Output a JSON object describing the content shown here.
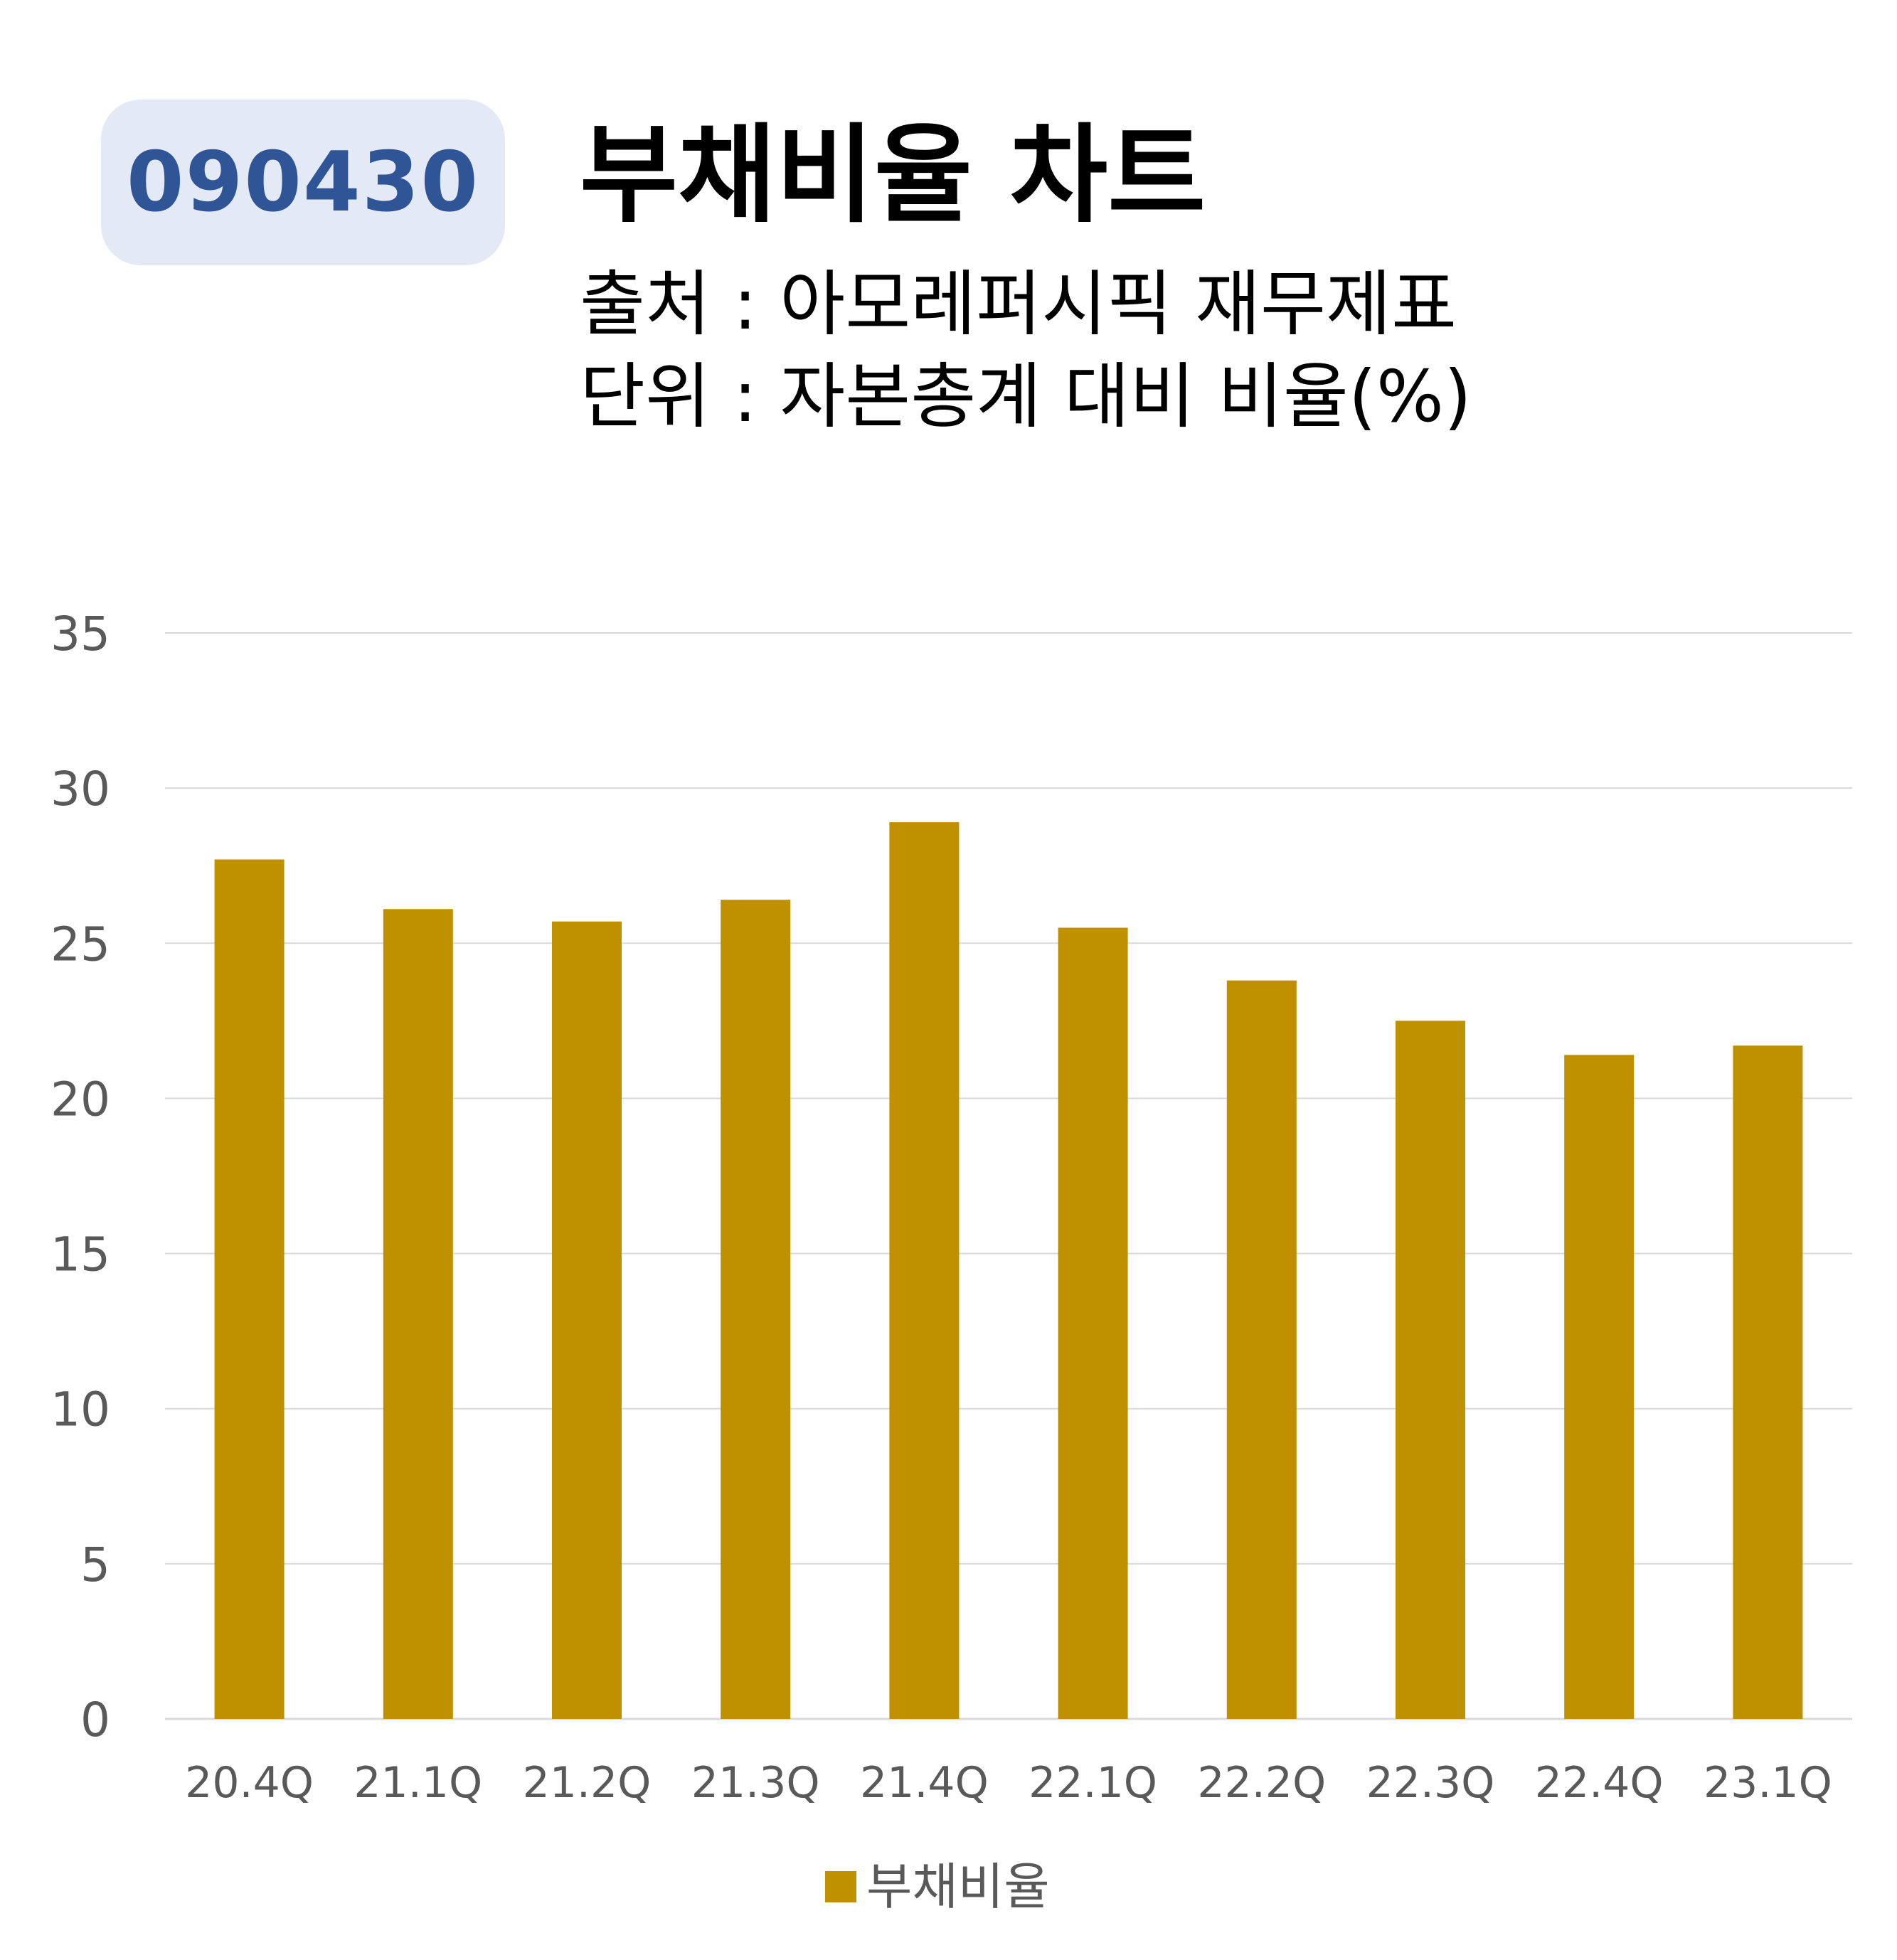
{
  "header": {
    "code": "090430",
    "title": "부채비율 차트",
    "source_line": "출처 : 아모레퍼시픽 재무제표",
    "unit_line": "단위 : 자본총계 대비 비율(%)"
  },
  "chart_data": {
    "type": "bar",
    "title": "부채비율 차트",
    "categories": [
      "20.4Q",
      "21.1Q",
      "21.2Q",
      "21.3Q",
      "21.4Q",
      "22.1Q",
      "22.2Q",
      "22.3Q",
      "22.4Q",
      "23.1Q"
    ],
    "series": [
      {
        "name": "부채비율",
        "color": "#bf9000",
        "values": [
          27.7,
          26.1,
          25.7,
          26.4,
          28.9,
          25.5,
          23.8,
          22.5,
          21.4,
          21.7
        ]
      }
    ],
    "y_ticks": [
      "0",
      "5",
      "10",
      "15",
      "20",
      "25",
      "30",
      "35"
    ],
    "ylim": [
      0,
      35
    ],
    "grid": true,
    "legend_position": "bottom-center",
    "xlabel": "",
    "ylabel": ""
  },
  "colors": {
    "bar": "#bf9000",
    "badge_bg": "#e3e9f5",
    "badge_text": "#2f5597",
    "grid": "#d9d9d9",
    "axis_text": "#595959"
  }
}
